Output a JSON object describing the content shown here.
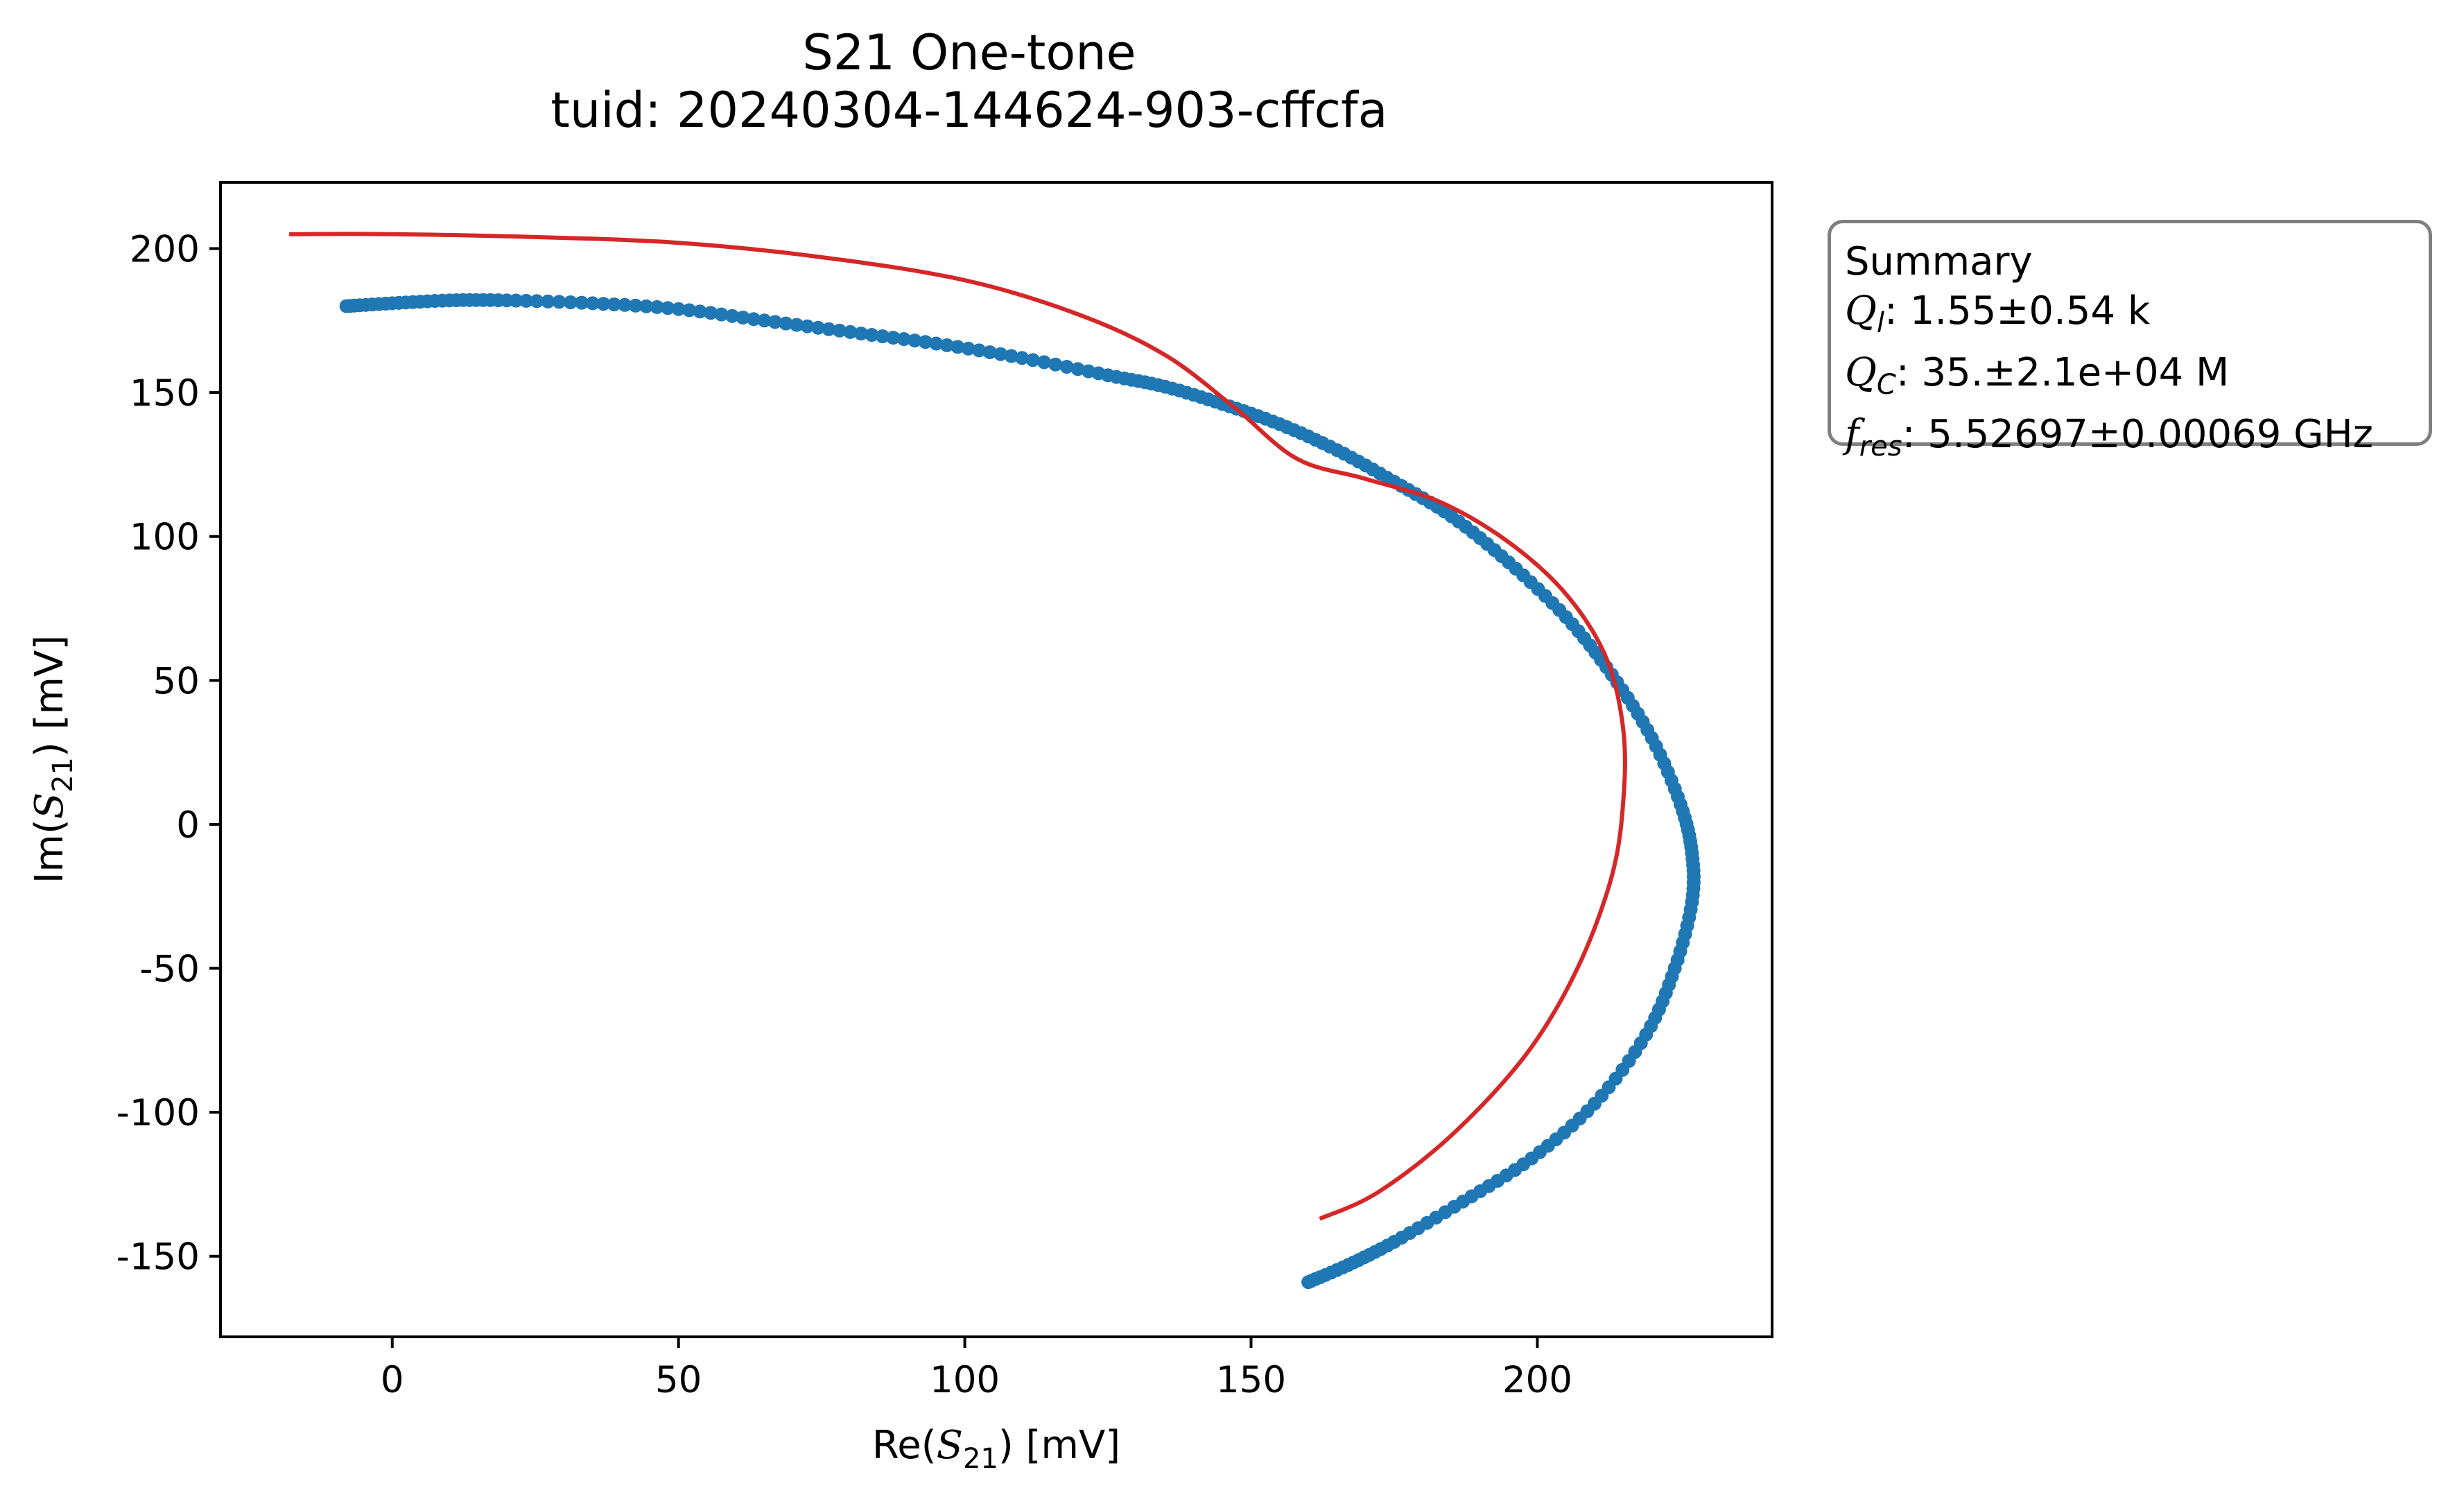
{
  "chart_data": {
    "type": "scatter",
    "title": "S21 One-tone",
    "subtitle": "tuid: 20240304-144624-903-cffcfa",
    "xlabel": "Re(S21) [mV]",
    "ylabel": "Im(S21) [mV]",
    "xlim": [
      -30,
      241
    ],
    "ylim": [
      -178,
      223
    ],
    "xticks": [
      0,
      50,
      100,
      150,
      200
    ],
    "yticks": [
      -150,
      -100,
      -50,
      0,
      50,
      100,
      150,
      200
    ],
    "grid": false,
    "series": [
      {
        "kind": "points",
        "color": "#1f77b4",
        "values": [
          [
            -8,
            180
          ],
          [
            0,
            181
          ],
          [
            10,
            182
          ],
          [
            20,
            182
          ],
          [
            35,
            181
          ],
          [
            50,
            179
          ],
          [
            65,
            175
          ],
          [
            80,
            171
          ],
          [
            95,
            167
          ],
          [
            110,
            162
          ],
          [
            125,
            156
          ],
          [
            135,
            152
          ],
          [
            145,
            146
          ],
          [
            155,
            139
          ],
          [
            165,
            130
          ],
          [
            175,
            119
          ],
          [
            185,
            107
          ],
          [
            195,
            91
          ],
          [
            205,
            72
          ],
          [
            213,
            52
          ],
          [
            220,
            30
          ],
          [
            225,
            7
          ],
          [
            227,
            -10
          ],
          [
            227,
            -27
          ],
          [
            224,
            -50
          ],
          [
            219,
            -73
          ],
          [
            210,
            -97
          ],
          [
            199,
            -116
          ],
          [
            187,
            -131
          ],
          [
            175,
            -145
          ],
          [
            167,
            -153
          ],
          [
            160,
            -159
          ]
        ]
      },
      {
        "kind": "fit-line",
        "color": "#d62728",
        "values": [
          [
            -18,
            205
          ],
          [
            0,
            205
          ],
          [
            25,
            204
          ],
          [
            50,
            202
          ],
          [
            75,
            197
          ],
          [
            100,
            189
          ],
          [
            120,
            177
          ],
          [
            135,
            163
          ],
          [
            147,
            145
          ],
          [
            158,
            127
          ],
          [
            170,
            120
          ],
          [
            183,
            112
          ],
          [
            195,
            98
          ],
          [
            205,
            80
          ],
          [
            212,
            58
          ],
          [
            215,
            33
          ],
          [
            215,
            8
          ],
          [
            213,
            -18
          ],
          [
            207,
            -50
          ],
          [
            198,
            -80
          ],
          [
            185,
            -108
          ],
          [
            172,
            -128
          ],
          [
            162,
            -137
          ]
        ]
      }
    ]
  },
  "summary": {
    "heading": "Summary",
    "ql_label": "Q",
    "ql_sub": "l",
    "ql_value": ": 1.55±0.54 k",
    "qc_label": "Q",
    "qc_sub": "C",
    "qc_value": ": 35.±2.1e+04 M",
    "fres_label": "f",
    "fres_sub": "res",
    "fres_value": ": 5.52697±0.00069 GHz"
  }
}
